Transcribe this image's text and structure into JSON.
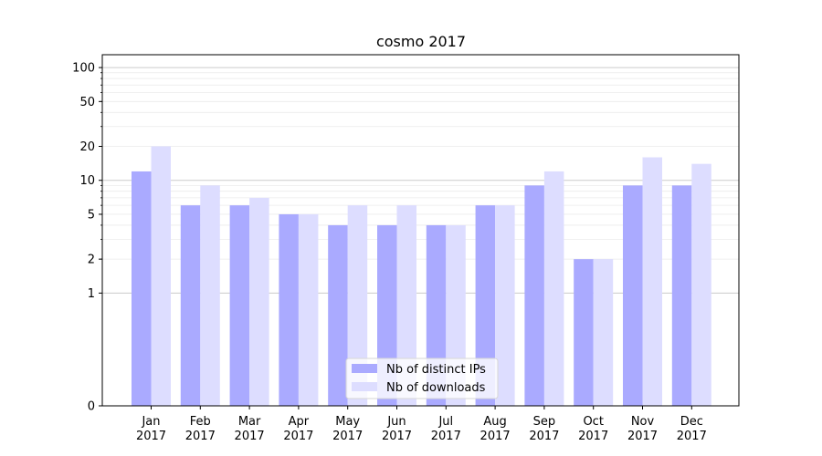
{
  "chart_data": {
    "type": "bar",
    "title": "cosmo 2017",
    "xlabel": "",
    "ylabel": "",
    "y_scale": "symlog",
    "ylim": [
      0,
      130
    ],
    "y_ticks": [
      0,
      1,
      2,
      5,
      10,
      20,
      50,
      100
    ],
    "grid": true,
    "legend_position": "lower-center",
    "categories": [
      [
        "Jan",
        "2017"
      ],
      [
        "Feb",
        "2017"
      ],
      [
        "Mar",
        "2017"
      ],
      [
        "Apr",
        "2017"
      ],
      [
        "May",
        "2017"
      ],
      [
        "Jun",
        "2017"
      ],
      [
        "Jul",
        "2017"
      ],
      [
        "Aug",
        "2017"
      ],
      [
        "Sep",
        "2017"
      ],
      [
        "Oct",
        "2017"
      ],
      [
        "Nov",
        "2017"
      ],
      [
        "Dec",
        "2017"
      ]
    ],
    "series": [
      {
        "name": "Nb of distinct IPs",
        "color": "#aaaaff",
        "values": [
          12,
          6,
          6,
          5,
          4,
          4,
          4,
          6,
          9,
          2,
          9,
          9
        ]
      },
      {
        "name": "Nb of downloads",
        "color": "#ddddff",
        "values": [
          20,
          9,
          7,
          5,
          6,
          6,
          4,
          6,
          12,
          2,
          16,
          14
        ]
      }
    ]
  }
}
